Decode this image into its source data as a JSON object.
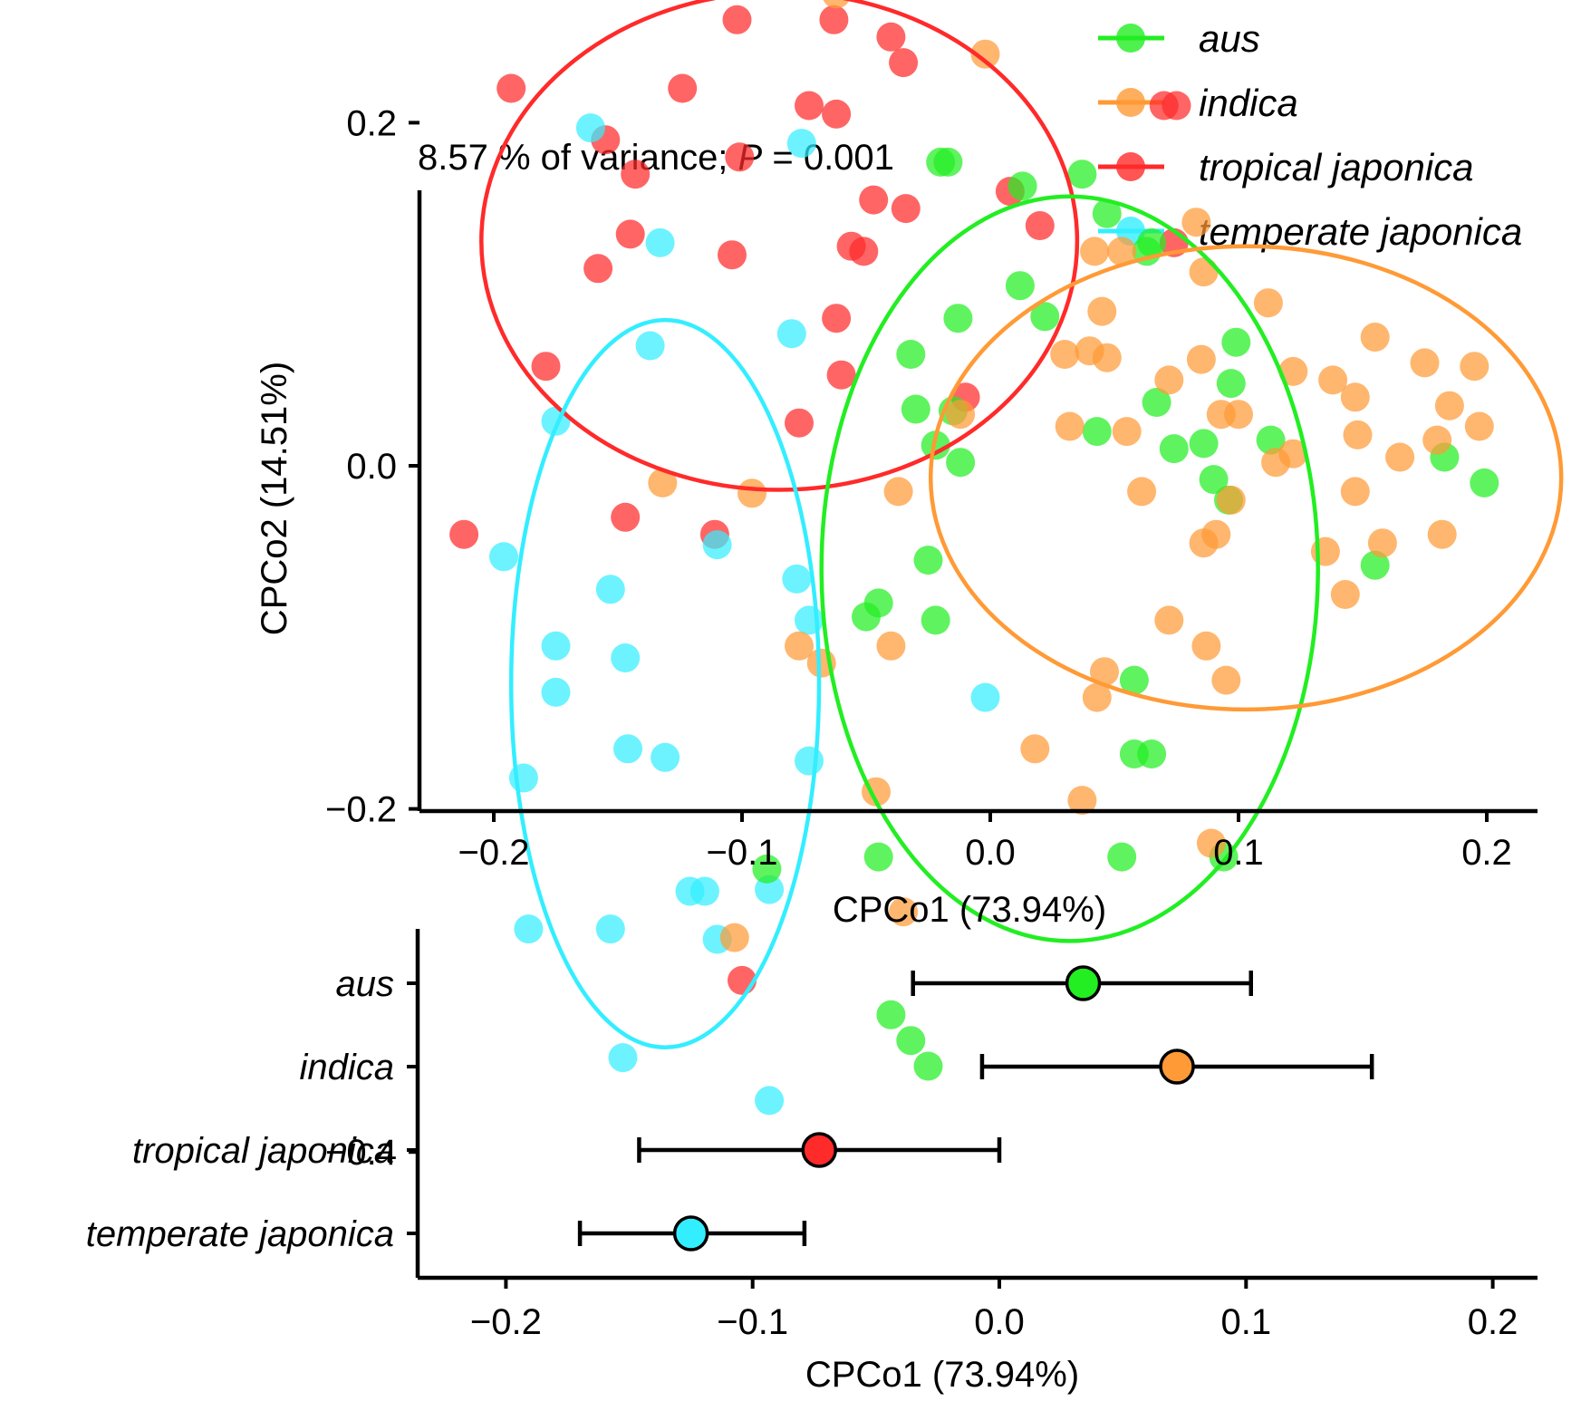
{
  "colors": {
    "aus": "#22ee22",
    "indica": "#ff9a36",
    "tropical japonica": "#ff2a2a",
    "temperate japonica": "#33eeff",
    "axis": "#000000"
  },
  "chart_data": [
    {
      "type": "scatter",
      "subtitle": {
        "prefix": "8.57 % of variance; ",
        "italic": "P",
        "suffix": " = 0.001"
      },
      "xlabel": "CPCo1 (73.94%)",
      "ylabel": "CPCo2 (14.51%)",
      "xlim": [
        -0.235,
        0.22
      ],
      "ylim": [
        -0.41,
        0.32
      ],
      "xticks": [
        -0.2,
        -0.1,
        0.0,
        0.1,
        0.2
      ],
      "xtick_labels": [
        "−0.2",
        "−0.1",
        "0.0",
        "0.1",
        "0.2"
      ],
      "yticks": [
        0.2,
        0.0,
        -0.2,
        -0.4
      ],
      "ytick_labels": [
        "0.2",
        "0.0",
        "−0.2",
        "−0.4"
      ],
      "legend": {
        "position": "top-right",
        "entries": [
          "aus",
          "indica",
          "tropical japonica",
          "temperate japonica"
        ]
      },
      "ellipses": [
        {
          "name": "tropical japonica",
          "cx": -0.085,
          "cy": 0.131,
          "rx": 0.12,
          "ry": 0.145
        },
        {
          "name": "temperate japonica",
          "cx": -0.131,
          "cy": -0.127,
          "rx": 0.062,
          "ry": 0.212
        },
        {
          "name": "aus",
          "cx": 0.032,
          "cy": -0.06,
          "rx": 0.1,
          "ry": 0.217
        },
        {
          "name": "indica",
          "cx": 0.103,
          "cy": -0.007,
          "rx": 0.127,
          "ry": 0.135
        }
      ],
      "series": [
        {
          "name": "tropical japonica",
          "points": [
            [
              -0.193,
              0.22
            ],
            [
              -0.144,
              0.28
            ],
            [
              -0.124,
              0.22
            ],
            [
              -0.102,
              0.26
            ],
            [
              -0.093,
              0.29
            ],
            [
              -0.063,
              0.26
            ],
            [
              -0.04,
              0.25
            ],
            [
              -0.155,
              0.19
            ],
            [
              -0.143,
              0.17
            ],
            [
              -0.101,
              0.18
            ],
            [
              -0.073,
              0.21
            ],
            [
              -0.047,
              0.155
            ],
            [
              -0.034,
              0.15
            ],
            [
              -0.158,
              0.115
            ],
            [
              -0.145,
              0.135
            ],
            [
              -0.104,
              0.123
            ],
            [
              -0.056,
              0.128
            ],
            [
              -0.051,
              0.125
            ],
            [
              -0.062,
              0.086
            ],
            [
              -0.06,
              0.053
            ],
            [
              -0.035,
              0.235
            ],
            [
              -0.077,
              0.025
            ],
            [
              -0.062,
              0.205
            ],
            [
              0.008,
              0.16
            ],
            [
              0.02,
              0.14
            ],
            [
              0.07,
              0.21
            ],
            [
              0.075,
              0.21
            ],
            [
              0.074,
              0.13
            ],
            [
              -0.01,
              0.04
            ],
            [
              -0.179,
              0.058
            ],
            [
              -0.212,
              -0.04
            ],
            [
              -0.147,
              -0.03
            ],
            [
              -0.111,
              -0.04
            ],
            [
              -0.1,
              -0.3
            ]
          ]
        },
        {
          "name": "temperate japonica",
          "points": [
            [
              -0.161,
              0.197
            ],
            [
              -0.076,
              0.188
            ],
            [
              -0.133,
              0.13
            ],
            [
              -0.137,
              0.07
            ],
            [
              -0.08,
              0.077
            ],
            [
              -0.175,
              0.026
            ],
            [
              -0.196,
              -0.053
            ],
            [
              -0.11,
              -0.046
            ],
            [
              -0.078,
              -0.066
            ],
            [
              -0.153,
              -0.072
            ],
            [
              -0.147,
              -0.112
            ],
            [
              -0.175,
              -0.105
            ],
            [
              -0.175,
              -0.132
            ],
            [
              -0.188,
              -0.182
            ],
            [
              -0.146,
              -0.165
            ],
            [
              -0.131,
              -0.17
            ],
            [
              -0.073,
              -0.09
            ],
            [
              -0.073,
              -0.172
            ],
            [
              -0.186,
              -0.27
            ],
            [
              -0.153,
              -0.27
            ],
            [
              -0.121,
              -0.248
            ],
            [
              -0.115,
              -0.248
            ],
            [
              -0.11,
              -0.276
            ],
            [
              -0.148,
              -0.345
            ],
            [
              -0.089,
              -0.37
            ],
            [
              -0.089,
              -0.247
            ],
            [
              -0.002,
              -0.135
            ]
          ]
        },
        {
          "name": "aus",
          "points": [
            [
              -0.02,
              0.177
            ],
            [
              -0.017,
              0.177
            ],
            [
              0.013,
              0.163
            ],
            [
              0.037,
              0.17
            ],
            [
              0.047,
              0.147
            ],
            [
              0.065,
              0.13
            ],
            [
              0.063,
              0.125
            ],
            [
              0.012,
              0.105
            ],
            [
              0.022,
              0.087
            ],
            [
              -0.013,
              0.086
            ],
            [
              -0.032,
              0.065
            ],
            [
              -0.03,
              0.033
            ],
            [
              -0.015,
              0.032
            ],
            [
              -0.022,
              0.012
            ],
            [
              -0.012,
              0.002
            ],
            [
              0.043,
              0.02
            ],
            [
              0.067,
              0.037
            ],
            [
              0.074,
              0.01
            ],
            [
              0.086,
              0.013
            ],
            [
              0.099,
              0.072
            ],
            [
              0.097,
              0.048
            ],
            [
              0.09,
              -0.008
            ],
            [
              0.096,
              -0.02
            ],
            [
              0.113,
              0.015
            ],
            [
              0.155,
              -0.058
            ],
            [
              0.183,
              0.005
            ],
            [
              0.199,
              -0.01
            ],
            [
              -0.025,
              -0.055
            ],
            [
              -0.022,
              -0.09
            ],
            [
              -0.045,
              -0.08
            ],
            [
              -0.05,
              -0.088
            ],
            [
              0.058,
              -0.125
            ],
            [
              0.058,
              -0.168
            ],
            [
              0.065,
              -0.168
            ],
            [
              0.053,
              -0.228
            ],
            [
              0.094,
              -0.228
            ],
            [
              -0.045,
              -0.228
            ],
            [
              -0.09,
              -0.235
            ],
            [
              -0.04,
              -0.32
            ],
            [
              -0.032,
              -0.335
            ],
            [
              -0.025,
              -0.35
            ]
          ]
        },
        {
          "name": "indica",
          "points": [
            [
              -0.062,
              0.275
            ],
            [
              -0.002,
              0.24
            ],
            [
              0.042,
              0.125
            ],
            [
              0.053,
              0.125
            ],
            [
              0.083,
              0.142
            ],
            [
              0.086,
              0.113
            ],
            [
              0.045,
              0.09
            ],
            [
              0.03,
              0.065
            ],
            [
              0.04,
              0.067
            ],
            [
              0.047,
              0.063
            ],
            [
              0.032,
              0.023
            ],
            [
              0.055,
              0.02
            ],
            [
              0.061,
              -0.015
            ],
            [
              0.072,
              0.05
            ],
            [
              0.085,
              0.062
            ],
            [
              0.093,
              0.03
            ],
            [
              0.1,
              0.03
            ],
            [
              0.115,
              0.002
            ],
            [
              0.122,
              0.007
            ],
            [
              0.112,
              0.095
            ],
            [
              0.122,
              0.055
            ],
            [
              0.138,
              0.05
            ],
            [
              0.147,
              0.04
            ],
            [
              0.155,
              0.075
            ],
            [
              0.148,
              0.018
            ],
            [
              0.147,
              -0.015
            ],
            [
              0.158,
              -0.045
            ],
            [
              0.135,
              -0.05
            ],
            [
              0.143,
              -0.075
            ],
            [
              0.165,
              0.005
            ],
            [
              0.175,
              0.06
            ],
            [
              0.18,
              0.015
            ],
            [
              0.185,
              0.035
            ],
            [
              0.195,
              0.058
            ],
            [
              0.197,
              0.023
            ],
            [
              0.182,
              -0.04
            ],
            [
              0.097,
              -0.02
            ],
            [
              0.091,
              -0.04
            ],
            [
              0.086,
              -0.045
            ],
            [
              0.072,
              -0.09
            ],
            [
              0.087,
              -0.105
            ],
            [
              0.095,
              -0.125
            ],
            [
              0.043,
              -0.135
            ],
            [
              0.046,
              -0.12
            ],
            [
              0.037,
              -0.195
            ],
            [
              0.018,
              -0.165
            ],
            [
              -0.132,
              -0.01
            ],
            [
              -0.096,
              -0.016
            ],
            [
              -0.037,
              -0.015
            ],
            [
              -0.077,
              -0.105
            ],
            [
              -0.068,
              -0.115
            ],
            [
              -0.04,
              -0.105
            ],
            [
              -0.046,
              -0.19
            ],
            [
              -0.035,
              -0.26
            ],
            [
              -0.103,
              -0.275
            ],
            [
              0.089,
              -0.22
            ],
            [
              -0.012,
              0.03
            ]
          ]
        }
      ]
    },
    {
      "type": "errorbar",
      "xlabel": "CPCo1 (73.94%)",
      "xlim": [
        -0.235,
        0.22
      ],
      "xticks": [
        -0.2,
        -0.1,
        0.0,
        0.1,
        0.2
      ],
      "xtick_labels": [
        "−0.2",
        "−0.1",
        "0.0",
        "0.1",
        "0.2"
      ],
      "categories": [
        "aus",
        "indica",
        "tropical japonica",
        "temperate japonica"
      ],
      "means": [
        0.034,
        0.072,
        -0.073,
        -0.125
      ],
      "lower": [
        -0.035,
        -0.007,
        -0.146,
        -0.17
      ],
      "upper": [
        0.102,
        0.151,
        0.0,
        -0.079
      ]
    }
  ]
}
